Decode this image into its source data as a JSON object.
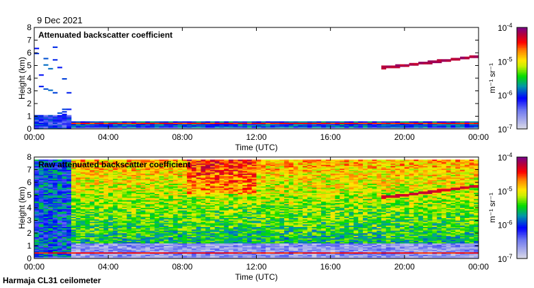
{
  "header": {
    "date": "9 Dec 2021"
  },
  "footer": {
    "instrument": "Harmaja CL31 ceilometer"
  },
  "chart_data": [
    {
      "type": "heatmap",
      "title": "Attenuated backscatter coefficient",
      "xlabel": "Time (UTC)",
      "ylabel": "Height (km)",
      "xticks": [
        "00:00",
        "04:00",
        "08:00",
        "12:00",
        "16:00",
        "20:00",
        "00:00"
      ],
      "yticks": [
        "0",
        "1",
        "2",
        "3",
        "4",
        "5",
        "6",
        "7",
        "8"
      ],
      "xlim_hours": [
        0,
        24
      ],
      "ylim_km": [
        0,
        8
      ],
      "colorbar": {
        "label": "m-1 sr-1",
        "ticks": [
          "10-7",
          "10-6",
          "10-5",
          "10-4"
        ],
        "log10_range": [
          -7,
          -4
        ]
      },
      "features": {
        "boundary_layer_top_km": 0.6,
        "cloud_layer": {
          "time_h": [
            18.8,
            20,
            21,
            22,
            23,
            24
          ],
          "height_km": [
            4.8,
            4.95,
            5.15,
            5.3,
            5.5,
            5.7
          ]
        },
        "precip_spikes_until_h": 1.8
      }
    },
    {
      "type": "heatmap",
      "title": "Raw attenuated backscatter coefficient",
      "xlabel": "Time (UTC)",
      "ylabel": "Height (km)",
      "xticks": [
        "00:00",
        "04:00",
        "08:00",
        "12:00",
        "16:00",
        "20:00",
        "00:00"
      ],
      "yticks": [
        "0",
        "1",
        "2",
        "3",
        "4",
        "5",
        "6",
        "7",
        "8"
      ],
      "xlim_hours": [
        0,
        24
      ],
      "ylim_km": [
        0,
        8
      ],
      "colorbar": {
        "label": "m-1 sr-1",
        "ticks": [
          "10-7",
          "10-6",
          "10-5",
          "10-4"
        ],
        "log10_range": [
          -7,
          -4
        ]
      },
      "features": {
        "max_range_km": 7.7,
        "cloud_layer": {
          "time_h": [
            18.8,
            20,
            21,
            22,
            23,
            24
          ],
          "height_km": [
            4.8,
            4.95,
            5.15,
            5.3,
            5.5,
            5.7
          ]
        }
      }
    }
  ]
}
